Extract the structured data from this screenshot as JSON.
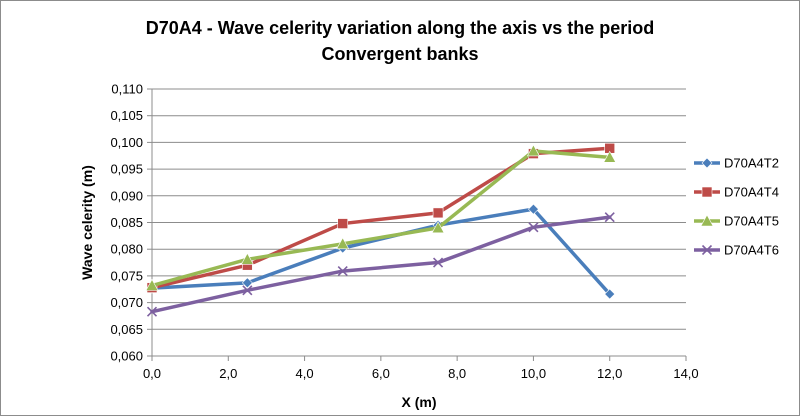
{
  "chart_data": {
    "type": "line",
    "title": [
      "D70A4 - Wave celerity variation along the axis vs the period",
      "Convergent banks"
    ],
    "xlabel": "X (m)",
    "ylabel": "Wave celerity (m)",
    "xlim": [
      0,
      14
    ],
    "ylim": [
      0.06,
      0.11
    ],
    "xticks": [
      0,
      2,
      4,
      6,
      8,
      10,
      12,
      14
    ],
    "xtick_labels": [
      "0,0",
      "2,0",
      "4,0",
      "6,0",
      "8,0",
      "10,0",
      "12,0",
      "14,0"
    ],
    "yticks": [
      0.06,
      0.065,
      0.07,
      0.075,
      0.08,
      0.085,
      0.09,
      0.095,
      0.1,
      0.105,
      0.11
    ],
    "ytick_labels": [
      "0,060",
      "0,065",
      "0,070",
      "0,075",
      "0,080",
      "0,085",
      "0,090",
      "0,095",
      "0,100",
      "0,105",
      "0,110"
    ],
    "grid": "horizontal",
    "legend_position": "right",
    "series": [
      {
        "name": "D70A4T2",
        "color": "#4a7ebb",
        "marker": "diamond",
        "x": [
          0,
          2.5,
          5,
          7.5,
          10,
          12
        ],
        "y": [
          0.0727,
          0.0737,
          0.0802,
          0.0845,
          0.0875,
          0.0716
        ]
      },
      {
        "name": "D70A4T4",
        "color": "#be4b48",
        "marker": "square",
        "x": [
          0,
          2.5,
          5,
          7.5,
          10,
          12
        ],
        "y": [
          0.0728,
          0.077,
          0.0848,
          0.0868,
          0.0979,
          0.0989
        ]
      },
      {
        "name": "D70A4T5",
        "color": "#98b954",
        "marker": "triangle",
        "x": [
          0,
          2.5,
          5,
          7.5,
          10,
          12
        ],
        "y": [
          0.0732,
          0.0781,
          0.081,
          0.084,
          0.0984,
          0.0972
        ]
      },
      {
        "name": "D70A4T6",
        "color": "#7d60a0",
        "marker": "x",
        "x": [
          0,
          2.5,
          5,
          7.5,
          10,
          12
        ],
        "y": [
          0.0683,
          0.0723,
          0.0759,
          0.0775,
          0.0841,
          0.086
        ]
      }
    ]
  }
}
